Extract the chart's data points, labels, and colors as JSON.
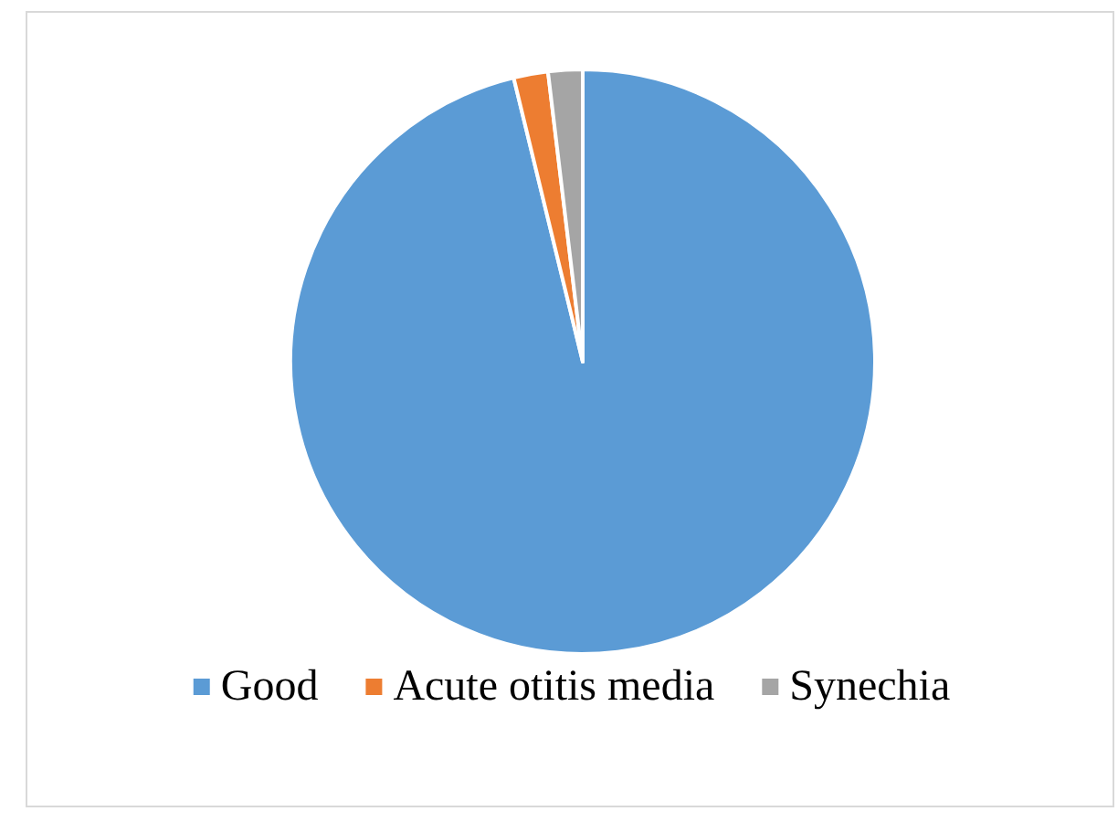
{
  "chart_data": {
    "type": "pie",
    "categories": [
      "Good",
      "Acute otitis media",
      "Synechia"
    ],
    "values": [
      96.2,
      1.9,
      1.9
    ],
    "colors": [
      "#5b9bd5",
      "#ed7d31",
      "#a5a5a5"
    ],
    "legend": "bottom"
  }
}
